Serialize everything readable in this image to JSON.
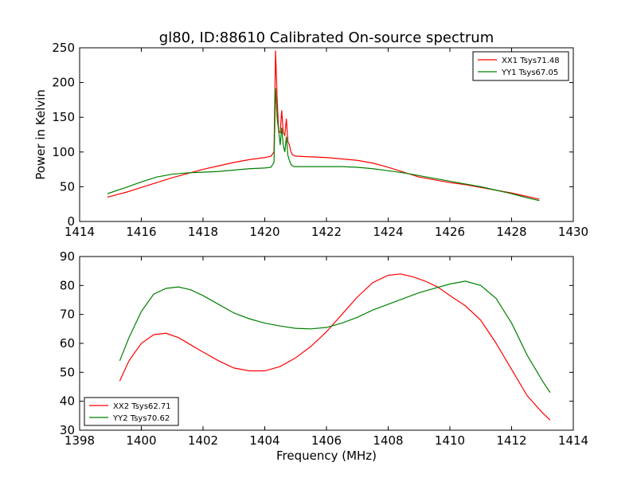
{
  "chart_data": [
    {
      "type": "line",
      "title": "gl80, ID:88610 Calibrated On-source spectrum",
      "xlabel": "",
      "ylabel": "Power in Kelvin",
      "xlim": [
        1414,
        1430
      ],
      "ylim": [
        0,
        250
      ],
      "xticks": [
        1414,
        1416,
        1418,
        1420,
        1422,
        1424,
        1426,
        1428,
        1430
      ],
      "yticks": [
        0,
        50,
        100,
        150,
        200,
        250
      ],
      "grid": false,
      "legend_position": "top-right",
      "series": [
        {
          "name": "XX1 Tsys71.48",
          "color": "#ff0000",
          "x": [
            1414.9,
            1415.5,
            1416.0,
            1416.5,
            1417.0,
            1417.5,
            1418.0,
            1418.5,
            1419.0,
            1419.5,
            1420.0,
            1420.2,
            1420.3,
            1420.35,
            1420.4,
            1420.45,
            1420.5,
            1420.55,
            1420.6,
            1420.65,
            1420.7,
            1420.75,
            1420.8,
            1420.85,
            1420.9,
            1420.95,
            1421.0,
            1421.5,
            1422.0,
            1422.5,
            1423.0,
            1423.5,
            1424.0,
            1424.5,
            1425.0,
            1425.5,
            1426.0,
            1426.5,
            1427.0,
            1427.5,
            1428.0,
            1428.5,
            1428.9
          ],
          "y": [
            35,
            42,
            49,
            56,
            63,
            69,
            75,
            80,
            85,
            89,
            92,
            94,
            100,
            246,
            180,
            130,
            128,
            160,
            128,
            124,
            148,
            115,
            110,
            100,
            96,
            95,
            94,
            93,
            92,
            90,
            88,
            84,
            78,
            71,
            64,
            60,
            56,
            53,
            49,
            45,
            41,
            36,
            32
          ]
        },
        {
          "name": "YY1 Tsys67.05",
          "color": "#008000",
          "x": [
            1414.9,
            1415.5,
            1416.0,
            1416.5,
            1417.0,
            1417.5,
            1418.0,
            1418.5,
            1419.0,
            1419.5,
            1420.0,
            1420.2,
            1420.3,
            1420.35,
            1420.4,
            1420.45,
            1420.5,
            1420.55,
            1420.6,
            1420.65,
            1420.7,
            1420.75,
            1420.8,
            1420.85,
            1420.9,
            1420.95,
            1421.0,
            1421.5,
            1422.0,
            1422.5,
            1423.0,
            1423.5,
            1424.0,
            1424.5,
            1425.0,
            1425.5,
            1426.0,
            1426.5,
            1427.0,
            1427.5,
            1428.0,
            1428.5,
            1428.9
          ],
          "y": [
            40,
            49,
            57,
            64,
            68,
            70,
            71,
            72,
            74,
            76,
            77,
            78,
            85,
            192,
            150,
            130,
            110,
            135,
            110,
            100,
            122,
            95,
            88,
            82,
            80,
            79,
            79,
            79,
            79,
            79,
            78,
            76,
            73,
            70,
            66,
            62,
            58,
            54,
            50,
            45,
            40,
            34,
            30
          ]
        }
      ]
    },
    {
      "type": "line",
      "title": "",
      "xlabel": "Frequency (MHz)",
      "ylabel": "",
      "xlim": [
        1398,
        1414
      ],
      "ylim": [
        30,
        90
      ],
      "xticks": [
        1398,
        1400,
        1402,
        1404,
        1406,
        1408,
        1410,
        1412,
        1414
      ],
      "yticks": [
        30,
        40,
        50,
        60,
        70,
        80,
        90
      ],
      "grid": false,
      "legend_position": "bottom-left",
      "series": [
        {
          "name": "XX2 Tsys62.71",
          "color": "#ff0000",
          "x": [
            1399.3,
            1399.6,
            1400.0,
            1400.4,
            1400.8,
            1401.2,
            1401.6,
            1402.0,
            1402.5,
            1403.0,
            1403.5,
            1404.0,
            1404.5,
            1405.0,
            1405.5,
            1406.0,
            1406.5,
            1407.0,
            1407.5,
            1408.0,
            1408.4,
            1408.8,
            1409.2,
            1409.6,
            1410.0,
            1410.5,
            1411.0,
            1411.5,
            1412.0,
            1412.5,
            1413.0,
            1413.25
          ],
          "y": [
            47,
            54,
            60,
            63,
            63.5,
            62,
            59.5,
            57,
            54,
            51.5,
            50.5,
            50.5,
            52,
            55,
            59,
            64,
            70,
            76,
            81,
            83.5,
            84,
            83,
            81.5,
            79.5,
            76.5,
            73,
            68,
            60,
            51,
            42,
            36,
            33.5
          ]
        },
        {
          "name": "YY2 Tsys70.62",
          "color": "#008000",
          "x": [
            1399.3,
            1399.6,
            1400.0,
            1400.4,
            1400.8,
            1401.2,
            1401.6,
            1402.0,
            1402.5,
            1403.0,
            1403.5,
            1404.0,
            1404.5,
            1405.0,
            1405.5,
            1406.0,
            1406.5,
            1407.0,
            1407.5,
            1408.0,
            1408.5,
            1409.0,
            1409.5,
            1410.0,
            1410.5,
            1411.0,
            1411.5,
            1412.0,
            1412.5,
            1413.0,
            1413.25
          ],
          "y": [
            54,
            62,
            71,
            77,
            79,
            79.5,
            78.5,
            76.5,
            73.5,
            70.5,
            68.5,
            67,
            66,
            65.2,
            65,
            65.5,
            67,
            69,
            71.5,
            73.5,
            75.5,
            77.5,
            79,
            80.5,
            81.5,
            80,
            75.5,
            67,
            56,
            47,
            43
          ]
        }
      ]
    }
  ]
}
